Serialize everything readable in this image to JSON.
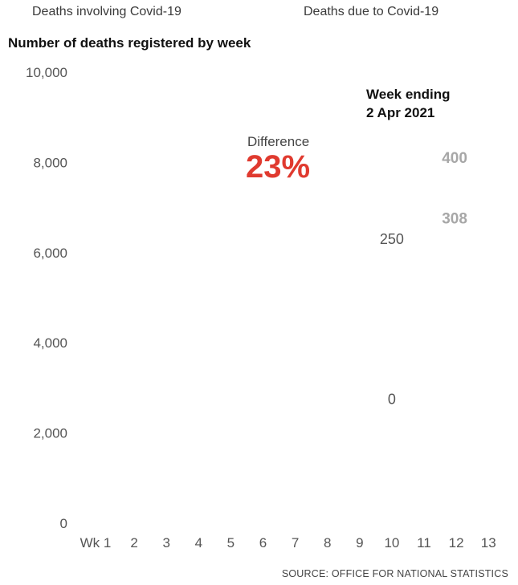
{
  "legend": {
    "involving_label": "Deaths involving Covid-19",
    "due_label": "Deaths due to Covid-19"
  },
  "title": "Number of deaths registered by week",
  "source": "SOURCE: OFFICE FOR NATIONAL STATISTICS",
  "chart_data": {
    "type": "bar",
    "title": "Number of deaths registered by week",
    "xlabel": "",
    "ylabel": "",
    "ylim": [
      0,
      10000
    ],
    "y_ticks": [
      0,
      2000,
      4000,
      6000,
      8000,
      10000
    ],
    "y_tick_labels": [
      "0",
      "2,000",
      "4,000",
      "6,000",
      "8,000",
      "10,000"
    ],
    "categories": [
      "Wk 1",
      "2",
      "3",
      "4",
      "5",
      "6",
      "7",
      "8",
      "9",
      "10",
      "11",
      "12",
      "13"
    ],
    "grid": false,
    "annotations": {
      "week_ending_line1": "Week ending",
      "week_ending_line2": "2 Apr 2021",
      "difference_label": "Difference",
      "difference_value": "23%",
      "values": [
        {
          "text": "400",
          "category": "12",
          "y": 8100,
          "style": "muted-bold"
        },
        {
          "text": "308",
          "category": "12",
          "y": 6750,
          "style": "muted-bold"
        },
        {
          "text": "250",
          "category": "10",
          "y": 6300,
          "style": "plain"
        },
        {
          "text": "0",
          "category": "10",
          "y": 2750,
          "style": "plain"
        }
      ]
    }
  },
  "colors": {
    "accent": "#e03a2f",
    "muted": "#a7a7a7",
    "axis_text": "#555555",
    "title": "#111111"
  }
}
